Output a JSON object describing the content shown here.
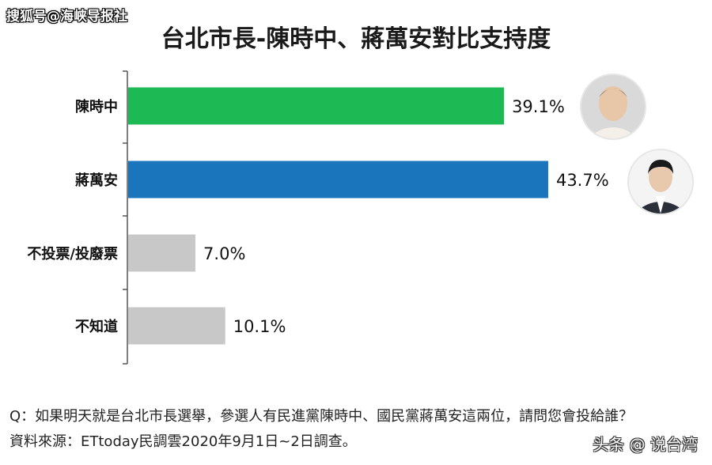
{
  "watermark_top": "搜狐号@海峡导报社",
  "watermark_bottom": "头条 @ 说台湾",
  "chart_data": {
    "type": "bar",
    "orientation": "horizontal",
    "title": "台北市長-陳時中、蔣萬安對比支持度",
    "categories": [
      "陳時中",
      "蔣萬安",
      "不投票/投廢票",
      "不知道"
    ],
    "values": [
      39.1,
      43.7,
      7.0,
      10.1
    ],
    "value_labels": [
      "39.1%",
      "43.7%",
      "7.0%",
      "10.1%"
    ],
    "colors": [
      "#1db954",
      "#1b75bc",
      "#c8c8c8",
      "#c8c8c8"
    ],
    "xlim": [
      0,
      50
    ],
    "grid": false
  },
  "footer": {
    "question": "Q：如果明天就是台北市長選舉，參選人有民進黨陳時中、國民黨蔣萬安這兩位，請問您會投給誰？",
    "source": "資料來源：ETtoday民調雲2020年9月1日~2日調查。"
  },
  "avatars": [
    "portrait-icon",
    "portrait-icon"
  ]
}
